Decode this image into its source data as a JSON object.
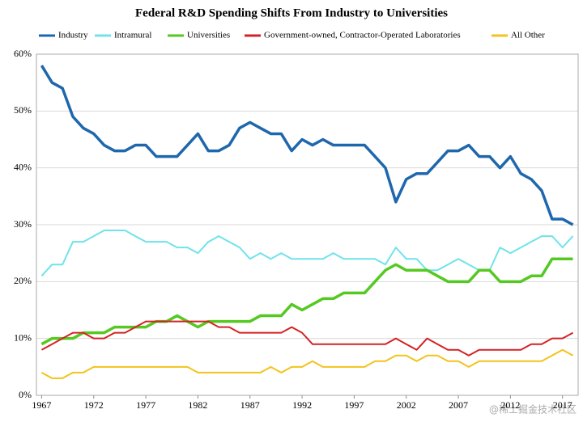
{
  "chart_data": {
    "type": "line",
    "title": "Federal R&D Spending Shifts From Industry to Universities",
    "x": [
      1967,
      1968,
      1969,
      1970,
      1971,
      1972,
      1973,
      1974,
      1975,
      1976,
      1977,
      1978,
      1979,
      1980,
      1981,
      1982,
      1983,
      1984,
      1985,
      1986,
      1987,
      1988,
      1989,
      1990,
      1991,
      1992,
      1993,
      1994,
      1995,
      1996,
      1997,
      1998,
      1999,
      2000,
      2001,
      2002,
      2003,
      2004,
      2005,
      2006,
      2007,
      2008,
      2009,
      2010,
      2011,
      2012,
      2013,
      2014,
      2015,
      2016,
      2017,
      2018
    ],
    "series": [
      {
        "name": "Industry",
        "color": "#1f67ad",
        "width": 3.5,
        "values": [
          58,
          55,
          54,
          49,
          47,
          46,
          44,
          43,
          43,
          44,
          44,
          42,
          42,
          42,
          44,
          46,
          43,
          43,
          44,
          47,
          48,
          47,
          46,
          46,
          43,
          45,
          44,
          45,
          44,
          44,
          44,
          44,
          42,
          40,
          34,
          38,
          39,
          39,
          41,
          43,
          43,
          44,
          42,
          42,
          40,
          42,
          39,
          38,
          36,
          31,
          31,
          30
        ]
      },
      {
        "name": "Intramural",
        "color": "#6fe3ea",
        "width": 2,
        "values": [
          21,
          23,
          23,
          27,
          27,
          28,
          29,
          29,
          29,
          28,
          27,
          27,
          27,
          26,
          26,
          25,
          27,
          28,
          27,
          26,
          24,
          25,
          24,
          25,
          24,
          24,
          24,
          24,
          25,
          24,
          24,
          24,
          24,
          23,
          26,
          24,
          24,
          22,
          22,
          23,
          24,
          23,
          22,
          22,
          26,
          25,
          26,
          27,
          28,
          28,
          26,
          28
        ]
      },
      {
        "name": "Universities",
        "color": "#55c922",
        "width": 3.5,
        "values": [
          9,
          10,
          10,
          10,
          11,
          11,
          11,
          12,
          12,
          12,
          12,
          13,
          13,
          14,
          13,
          12,
          13,
          13,
          13,
          13,
          13,
          14,
          14,
          14,
          16,
          15,
          16,
          17,
          17,
          18,
          18,
          18,
          20,
          22,
          23,
          22,
          22,
          22,
          21,
          20,
          20,
          20,
          22,
          22,
          20,
          20,
          20,
          21,
          21,
          24,
          24,
          24
        ]
      },
      {
        "name": "Government-owned, Contractor-Operated Laboratories",
        "color": "#d42224",
        "width": 2,
        "values": [
          8,
          9,
          10,
          11,
          11,
          10,
          10,
          11,
          11,
          12,
          13,
          13,
          13,
          13,
          13,
          13,
          13,
          12,
          12,
          11,
          11,
          11,
          11,
          11,
          12,
          11,
          9,
          9,
          9,
          9,
          9,
          9,
          9,
          9,
          10,
          9,
          8,
          10,
          9,
          8,
          8,
          7,
          8,
          8,
          8,
          8,
          8,
          9,
          9,
          10,
          10,
          11
        ]
      },
      {
        "name": "All Other",
        "color": "#f2c31c",
        "width": 2,
        "values": [
          4,
          3,
          3,
          4,
          4,
          5,
          5,
          5,
          5,
          5,
          5,
          5,
          5,
          5,
          5,
          4,
          4,
          4,
          4,
          4,
          4,
          4,
          5,
          4,
          5,
          5,
          6,
          5,
          5,
          5,
          5,
          5,
          6,
          6,
          7,
          7,
          6,
          7,
          7,
          6,
          6,
          5,
          6,
          6,
          6,
          6,
          6,
          6,
          6,
          7,
          8,
          7
        ]
      }
    ],
    "xlim": [
      1966.5,
      2018.5
    ],
    "xticks": [
      1967,
      1972,
      1977,
      1982,
      1987,
      1992,
      1997,
      2002,
      2007,
      2012,
      2017
    ],
    "ylim": [
      0,
      60
    ],
    "yticks": [
      {
        "value": 0,
        "label": "0%"
      },
      {
        "value": 10,
        "label": "10%"
      },
      {
        "value": 20,
        "label": "20%"
      },
      {
        "value": 30,
        "label": "30%"
      },
      {
        "value": 40,
        "label": "40%"
      },
      {
        "value": 50,
        "label": "50%"
      },
      {
        "value": 60,
        "label": "60%"
      }
    ],
    "grid": true,
    "legend": "top",
    "watermark": "@稀土掘金技术社区"
  }
}
